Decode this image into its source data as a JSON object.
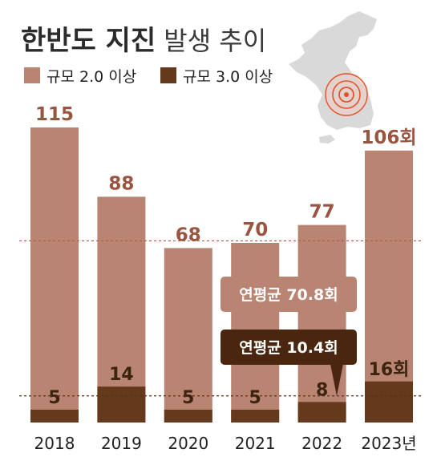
{
  "title": {
    "bold": "한반도 지진",
    "light": "발생 추이"
  },
  "colors": {
    "m2": "#b98472",
    "m3": "#65391b",
    "m2_label": "#9a5540",
    "m3_label": "#3b2410",
    "avg_m2_box": "#b98472",
    "avg_m3_box": "#4a260f",
    "map": "#d9d9d9",
    "epicenter": "#e0532e"
  },
  "map_icon": "korean-peninsula-map-with-epicenter",
  "chart_data": {
    "type": "bar",
    "categories": [
      "2018",
      "2019",
      "2020",
      "2021",
      "2022",
      "2023년"
    ],
    "series": [
      {
        "name": "규모 2.0 이상",
        "values": [
          115,
          88,
          68,
          70,
          77,
          106
        ]
      },
      {
        "name": "규모 3.0 이상",
        "values": [
          5,
          14,
          5,
          5,
          8,
          16
        ]
      }
    ],
    "value_labels": {
      "m2": [
        "115",
        "88",
        "68",
        "70",
        "77",
        "106회"
      ],
      "m3": [
        "5",
        "14",
        "5",
        "5",
        "8",
        "16회"
      ]
    },
    "averages": [
      {
        "label": "연평균 70.8회",
        "value": 70.8
      },
      {
        "label": "연평균 10.4회",
        "value": 10.4
      }
    ],
    "ylim": [
      0,
      115
    ],
    "grid": false,
    "legend": "top-left"
  }
}
